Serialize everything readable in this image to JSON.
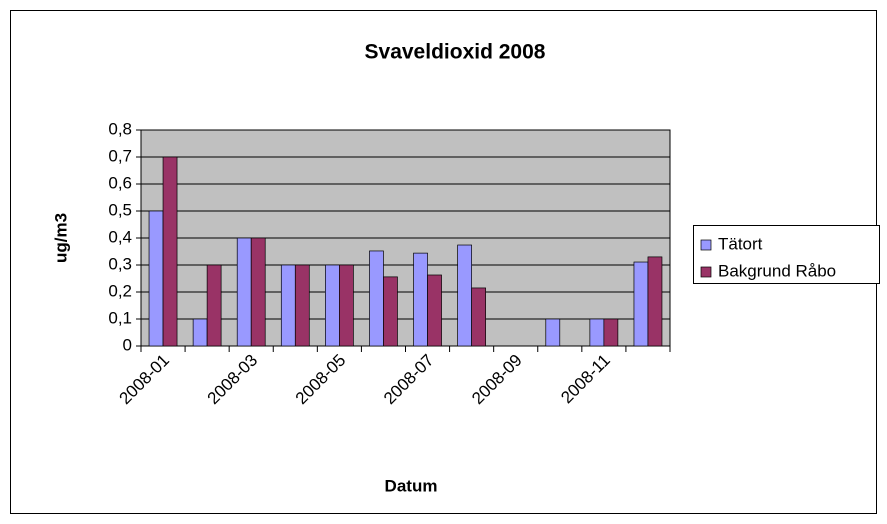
{
  "chart_data": {
    "type": "bar",
    "title": "Svaveldioxid 2008",
    "x_label": "Datum",
    "y_label": "ug/m3",
    "categories": [
      "2008-01",
      null,
      "2008-03",
      null,
      "2008-05",
      null,
      "2008-07",
      null,
      "2008-09",
      null,
      "2008-11",
      null
    ],
    "series": [
      {
        "name": "Tätort",
        "color": "#9999ff",
        "values": [
          0.5,
          0.1,
          0.4,
          0.3,
          0.3,
          0.352,
          0.344,
          0.374,
          null,
          0.1,
          0.1,
          0.311
        ]
      },
      {
        "name": "Bakgrund Råbo",
        "color": "#993366",
        "values": [
          0.7,
          0.3,
          0.4,
          0.3,
          0.3,
          0.256,
          0.263,
          0.215,
          null,
          null,
          0.1,
          0.33
        ]
      }
    ],
    "ylim": [
      0,
      0.8
    ],
    "yticks": [
      0,
      {
        "value": 0.1,
        "label": "0,1"
      },
      {
        "value": 0.2,
        "label": "0,2"
      },
      {
        "value": 0.3,
        "label": "0,3"
      },
      {
        "value": 0.4,
        "label": "0,4"
      },
      {
        "value": 0.5,
        "label": "0,5"
      },
      {
        "value": 0.6,
        "label": "0,6"
      },
      {
        "value": 0.7,
        "label": "0,7"
      },
      {
        "value": 0.8,
        "label": "0,8"
      }
    ],
    "grid": true,
    "plot_background": "#c0c0c0",
    "legend": "right"
  }
}
